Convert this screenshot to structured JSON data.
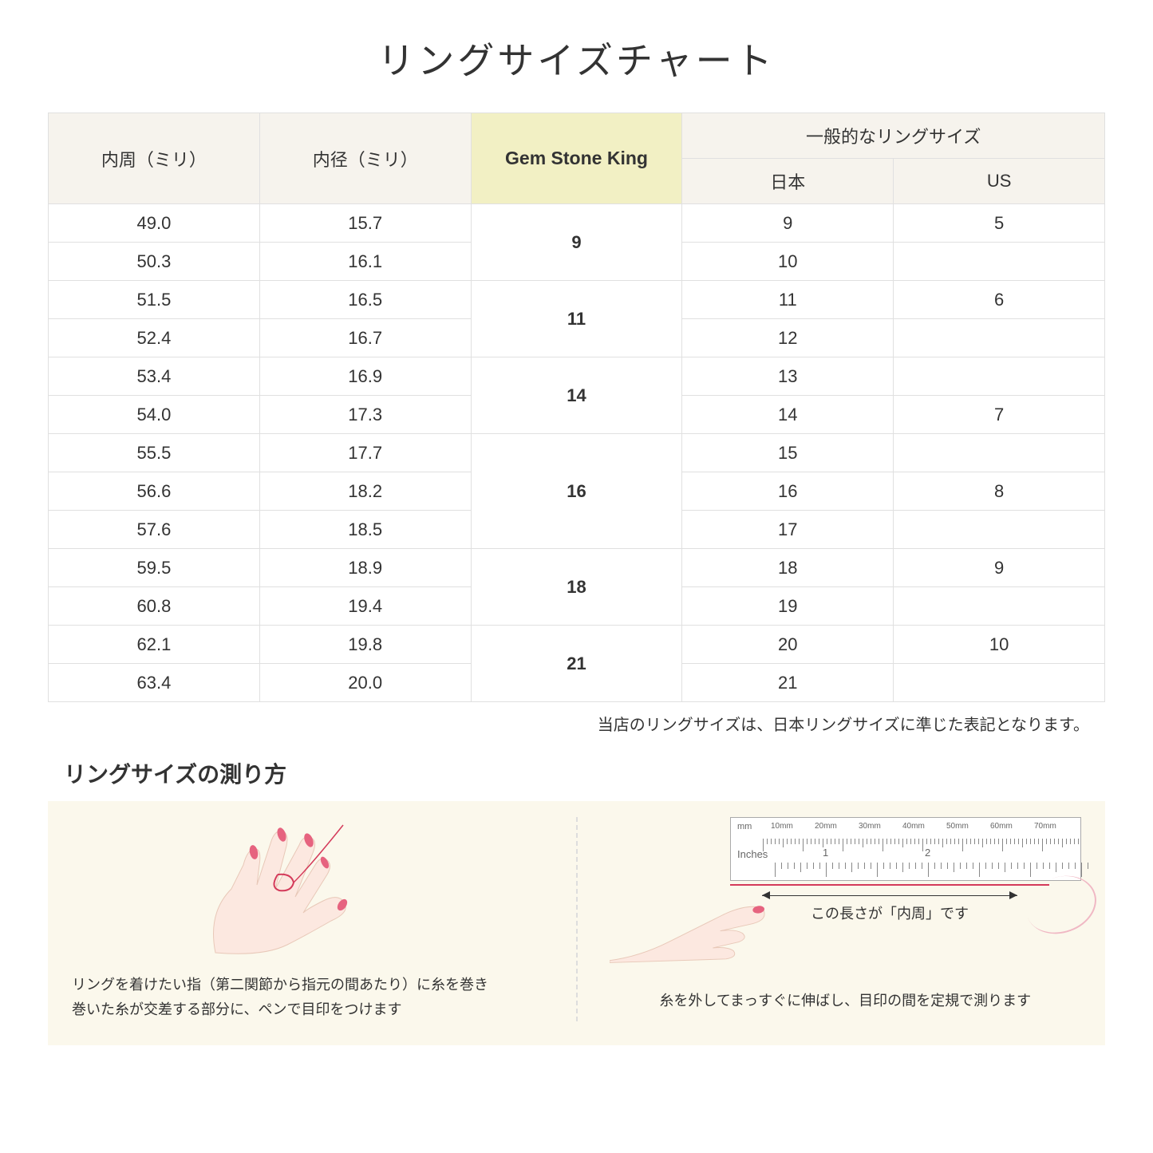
{
  "title": "リングサイズチャート",
  "table": {
    "headers": {
      "circumference": "内周（ミリ）",
      "diameter": "内径（ミリ）",
      "gsk": "Gem Stone King",
      "common": "一般的なリングサイズ",
      "japan": "日本",
      "us": "US"
    },
    "header_bg": "#f6f3ed",
    "gsk_bg": "#f2f0c4",
    "border_color": "#e0e0e0",
    "rows": [
      {
        "circ": "49.0",
        "dia": "15.7",
        "gsk": "9",
        "gsk_span": 2,
        "jp": "9",
        "us": "5"
      },
      {
        "circ": "50.3",
        "dia": "16.1",
        "jp": "10",
        "us": ""
      },
      {
        "circ": "51.5",
        "dia": "16.5",
        "gsk": "11",
        "gsk_span": 2,
        "jp": "11",
        "us": "6"
      },
      {
        "circ": "52.4",
        "dia": "16.7",
        "jp": "12",
        "us": ""
      },
      {
        "circ": "53.4",
        "dia": "16.9",
        "gsk": "14",
        "gsk_span": 2,
        "jp": "13",
        "us": ""
      },
      {
        "circ": "54.0",
        "dia": "17.3",
        "jp": "14",
        "us": "7"
      },
      {
        "circ": "55.5",
        "dia": "17.7",
        "gsk": "16",
        "gsk_span": 3,
        "jp": "15",
        "us": ""
      },
      {
        "circ": "56.6",
        "dia": "18.2",
        "jp": "16",
        "us": "8"
      },
      {
        "circ": "57.6",
        "dia": "18.5",
        "jp": "17",
        "us": ""
      },
      {
        "circ": "59.5",
        "dia": "18.9",
        "gsk": "18",
        "gsk_span": 2,
        "jp": "18",
        "us": "9"
      },
      {
        "circ": "60.8",
        "dia": "19.4",
        "jp": "19",
        "us": ""
      },
      {
        "circ": "62.1",
        "dia": "19.8",
        "gsk": "21",
        "gsk_span": 2,
        "jp": "20",
        "us": "10"
      },
      {
        "circ": "63.4",
        "dia": "20.0",
        "jp": "21",
        "us": ""
      }
    ]
  },
  "note": "当店のリングサイズは、日本リングサイズに準じた表記となります。",
  "howto": {
    "title": "リングサイズの測り方",
    "panel_bg": "#fbf8ec",
    "step1_line1": "リングを着けたい指（第二関節から指元の間あたり）に糸を巻き",
    "step1_line2": "巻いた糸が交差する部分に、ペンで目印をつけます",
    "step2_arrow_label": "この長さが「内周」です",
    "step2_caption": "糸を外してまっすぐに伸ばし、目印の間を定規で測ります",
    "ruler": {
      "mm_label": "mm",
      "in_label": "Inches",
      "mm_marks": [
        "10mm",
        "20mm",
        "30mm",
        "40mm",
        "50mm",
        "60mm",
        "70mm"
      ],
      "thread_color": "#d43a5a",
      "hand_fill": "#fce8e0",
      "nail_color": "#e6637f"
    }
  }
}
